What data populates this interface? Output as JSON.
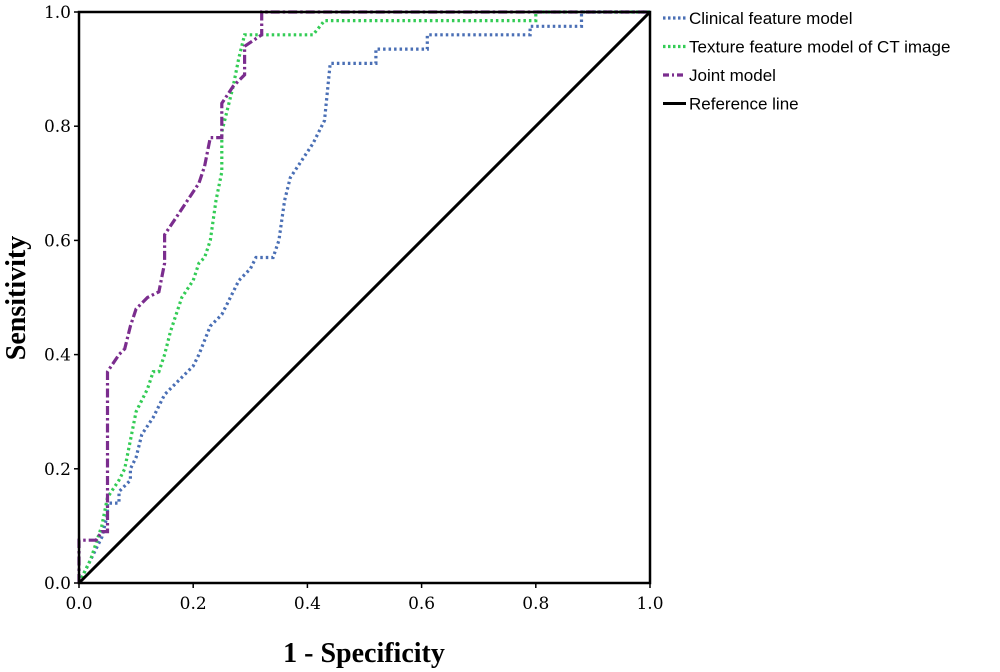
{
  "chart_data": {
    "type": "line",
    "title": "",
    "xlabel": "1 - Specificity",
    "ylabel": "Sensitivity",
    "xlim": [
      0,
      1
    ],
    "ylim": [
      0,
      1
    ],
    "x_ticks": [
      "0.0",
      "0.2",
      "0.4",
      "0.6",
      "0.8",
      "1.0"
    ],
    "y_ticks": [
      "0.0",
      "0.2",
      "0.4",
      "0.6",
      "0.8",
      "1.0"
    ],
    "grid": false,
    "legend_position": "top-right",
    "series": [
      {
        "name": "Clinical feature model",
        "color": "#4a6fb5",
        "style": "dotted",
        "points": [
          [
            0,
            0
          ],
          [
            0.01,
            0.02
          ],
          [
            0.02,
            0.04
          ],
          [
            0.03,
            0.06
          ],
          [
            0.04,
            0.08
          ],
          [
            0.05,
            0.12
          ],
          [
            0.05,
            0.14
          ],
          [
            0.07,
            0.14
          ],
          [
            0.07,
            0.16
          ],
          [
            0.09,
            0.18
          ],
          [
            0.09,
            0.2
          ],
          [
            0.1,
            0.22
          ],
          [
            0.11,
            0.26
          ],
          [
            0.13,
            0.29
          ],
          [
            0.14,
            0.31
          ],
          [
            0.15,
            0.33
          ],
          [
            0.17,
            0.35
          ],
          [
            0.19,
            0.37
          ],
          [
            0.2,
            0.38
          ],
          [
            0.21,
            0.4
          ],
          [
            0.23,
            0.45
          ],
          [
            0.25,
            0.47
          ],
          [
            0.27,
            0.51
          ],
          [
            0.28,
            0.53
          ],
          [
            0.3,
            0.55
          ],
          [
            0.31,
            0.57
          ],
          [
            0.34,
            0.57
          ],
          [
            0.35,
            0.6
          ],
          [
            0.36,
            0.67
          ],
          [
            0.37,
            0.71
          ],
          [
            0.39,
            0.74
          ],
          [
            0.41,
            0.77
          ],
          [
            0.43,
            0.81
          ],
          [
            0.44,
            0.91
          ],
          [
            0.52,
            0.91
          ],
          [
            0.52,
            0.935
          ],
          [
            0.61,
            0.935
          ],
          [
            0.61,
            0.96
          ],
          [
            0.79,
            0.96
          ],
          [
            0.79,
            0.975
          ],
          [
            0.88,
            0.975
          ],
          [
            0.88,
            1.0
          ],
          [
            1.0,
            1.0
          ]
        ]
      },
      {
        "name": "Texture feature model of CT image",
        "color": "#33cc55",
        "style": "dotted",
        "points": [
          [
            0,
            0
          ],
          [
            0.02,
            0.04
          ],
          [
            0.03,
            0.07
          ],
          [
            0.04,
            0.1
          ],
          [
            0.05,
            0.15
          ],
          [
            0.07,
            0.18
          ],
          [
            0.08,
            0.2
          ],
          [
            0.09,
            0.25
          ],
          [
            0.1,
            0.3
          ],
          [
            0.12,
            0.34
          ],
          [
            0.13,
            0.37
          ],
          [
            0.14,
            0.37
          ],
          [
            0.15,
            0.4
          ],
          [
            0.16,
            0.44
          ],
          [
            0.17,
            0.47
          ],
          [
            0.18,
            0.5
          ],
          [
            0.2,
            0.53
          ],
          [
            0.21,
            0.56
          ],
          [
            0.22,
            0.57
          ],
          [
            0.23,
            0.6
          ],
          [
            0.24,
            0.67
          ],
          [
            0.25,
            0.72
          ],
          [
            0.25,
            0.79
          ],
          [
            0.26,
            0.83
          ],
          [
            0.27,
            0.87
          ],
          [
            0.28,
            0.92
          ],
          [
            0.29,
            0.96
          ],
          [
            0.37,
            0.96
          ],
          [
            0.41,
            0.96
          ],
          [
            0.43,
            0.985
          ],
          [
            0.47,
            0.985
          ],
          [
            0.8,
            0.985
          ],
          [
            0.8,
            1.0
          ],
          [
            1.0,
            1.0
          ]
        ]
      },
      {
        "name": "Joint model",
        "color": "#7b2d8e",
        "style": "dash-dot",
        "points": [
          [
            0,
            0
          ],
          [
            0,
            0.075
          ],
          [
            0.03,
            0.075
          ],
          [
            0.04,
            0.09
          ],
          [
            0.05,
            0.09
          ],
          [
            0.05,
            0.37
          ],
          [
            0.07,
            0.4
          ],
          [
            0.08,
            0.41
          ],
          [
            0.09,
            0.45
          ],
          [
            0.1,
            0.48
          ],
          [
            0.12,
            0.5
          ],
          [
            0.14,
            0.51
          ],
          [
            0.15,
            0.56
          ],
          [
            0.15,
            0.61
          ],
          [
            0.17,
            0.64
          ],
          [
            0.19,
            0.67
          ],
          [
            0.21,
            0.7
          ],
          [
            0.22,
            0.73
          ],
          [
            0.23,
            0.78
          ],
          [
            0.25,
            0.78
          ],
          [
            0.25,
            0.84
          ],
          [
            0.27,
            0.87
          ],
          [
            0.29,
            0.89
          ],
          [
            0.29,
            0.94
          ],
          [
            0.32,
            0.96
          ],
          [
            0.32,
            1.0
          ],
          [
            1.0,
            1.0
          ]
        ]
      },
      {
        "name": "Reference line",
        "color": "#000000",
        "style": "solid",
        "points": [
          [
            0,
            0
          ],
          [
            1,
            1
          ]
        ]
      }
    ]
  }
}
